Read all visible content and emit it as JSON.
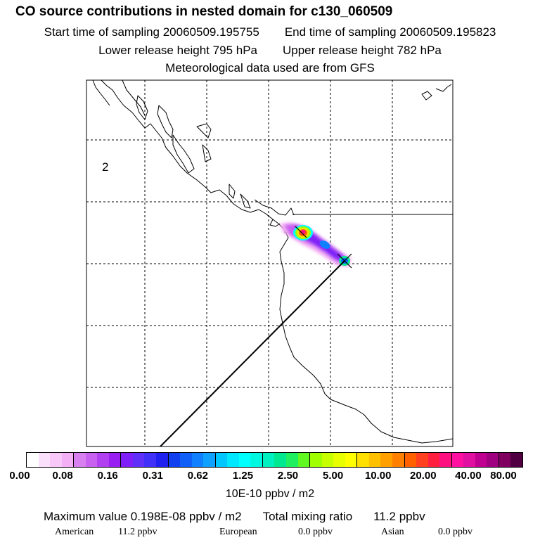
{
  "header": {
    "title": "CO  source contributions in nested domain for c130_060509",
    "start_label": "Start time of sampling 20060509.195755",
    "end_label": "End time of sampling 20060509.195823",
    "lower_label": "Lower release height  795 hPa",
    "upper_label": "Upper release height  782 hPa",
    "met_label": "Meteorological data used are from GFS"
  },
  "map": {
    "region_label": "2"
  },
  "colorbar": {
    "colors": [
      "#ffffff",
      "#fbe0fb",
      "#f8c8f8",
      "#f4b0f4",
      "#d880f0",
      "#c860f0",
      "#b040f0",
      "#9820f0",
      "#8020f8",
      "#6030f8",
      "#4030f8",
      "#2020f0",
      "#1040f0",
      "#1060f8",
      "#1080ff",
      "#10a0ff",
      "#00c8ff",
      "#00e8ff",
      "#00ffff",
      "#00f8e0",
      "#00f0c0",
      "#00e890",
      "#20f060",
      "#60f820",
      "#a0ff00",
      "#c8ff00",
      "#e8ff00",
      "#ffff00",
      "#ffe000",
      "#ffc000",
      "#ffa000",
      "#ff8000",
      "#ff6000",
      "#ff4020",
      "#ff2040",
      "#ff1080",
      "#ff10a0",
      "#e010a0",
      "#c00090",
      "#a00080",
      "#800060",
      "#500040"
    ],
    "ticks": [
      "0.00",
      "0.08",
      "0.16",
      "0.31",
      "0.62",
      "1.25",
      "2.50",
      "5.00",
      "10.00",
      "20.00",
      "40.00",
      "80.00"
    ],
    "units": "10E-10 ppbv / m2"
  },
  "stats": {
    "max_label": "Maximum value  0.198E-08 ppbv / m2",
    "total_label": "Total mixing ratio",
    "total_value": "11.2 ppbv",
    "american_label": "American",
    "american_value": "11.2 ppbv",
    "european_label": "European",
    "european_value": "0.0 ppbv",
    "asian_label": "Asian",
    "asian_value": "0.0 ppbv"
  }
}
